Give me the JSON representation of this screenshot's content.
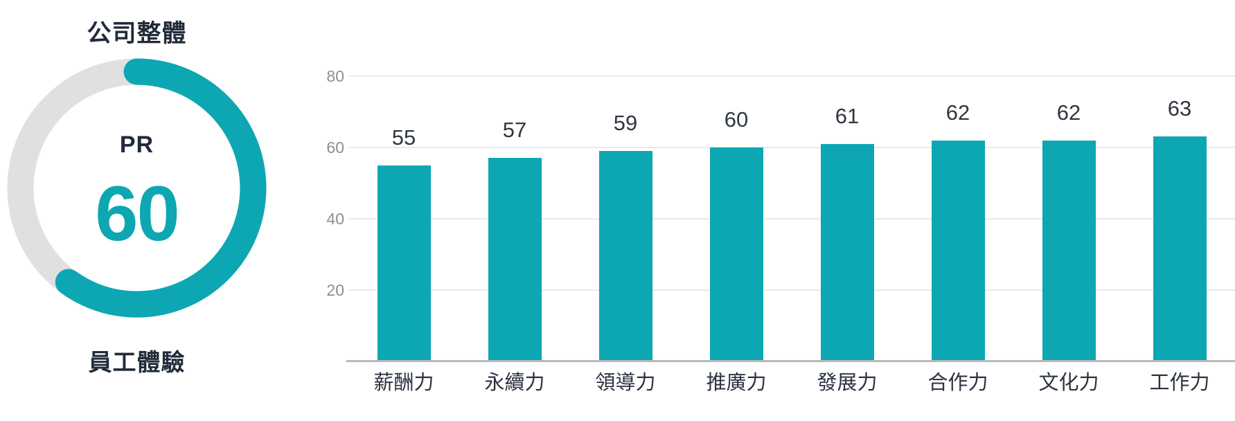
{
  "gauge": {
    "title": "公司整體",
    "metric_label": "PR",
    "value": 60,
    "max": 100,
    "subtitle": "員工體驗",
    "accent_color": "#0ca7b2",
    "track_color": "#e0e0e0"
  },
  "chart_data": {
    "type": "bar",
    "categories": [
      "薪酬力",
      "永續力",
      "領導力",
      "推廣力",
      "發展力",
      "合作力",
      "文化力",
      "工作力"
    ],
    "values": [
      55,
      57,
      59,
      60,
      61,
      62,
      62,
      63
    ],
    "title": "",
    "xlabel": "",
    "ylabel": "",
    "ylim": [
      0,
      80
    ],
    "yticks": [
      20,
      40,
      60,
      80
    ],
    "grid": true,
    "legend": "none",
    "bar_color": "#0ca7b2",
    "value_label_color": "#2f3640",
    "tick_label_color": "#8e8e8e"
  }
}
